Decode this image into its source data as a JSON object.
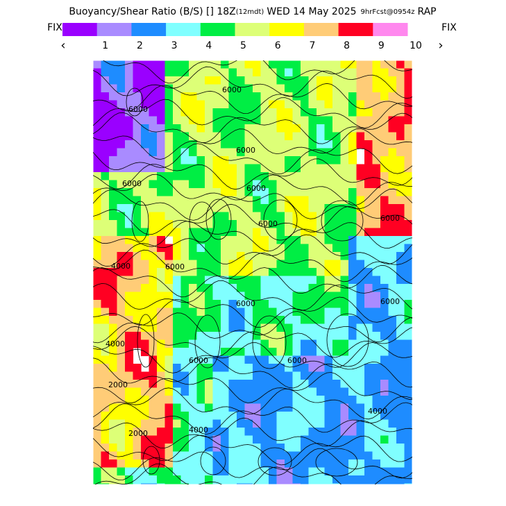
{
  "header": {
    "title": "Buoyancy/Shear Ratio (B/S) [] 18Z",
    "title_time": "(12mdt)",
    "title_date": "WED 14 May 2025",
    "title_run": "9hrFcst@0954z",
    "title_model": "RAP"
  },
  "legend": {
    "fix_left": "FIX",
    "fix_right": "FIX",
    "prev": "‹",
    "next": "›",
    "labels": [
      "1",
      "2",
      "3",
      "4",
      "5",
      "6",
      "7",
      "8",
      "9",
      "10"
    ],
    "colors": [
      "#9a00ff",
      "#a98bff",
      "#1e8cff",
      "#80ffff",
      "#00ee44",
      "#ddff77",
      "#ffff00",
      "#ffcc77",
      "#ff0022",
      "#ff88ee"
    ]
  },
  "map": {
    "contour_labels": [
      "6000",
      "6000",
      "6000",
      "6000",
      "6000",
      "6000",
      "4000",
      "6000",
      "6000",
      "6000",
      "4000",
      "2000",
      "2000",
      "4000",
      "6000",
      "4000",
      "6000",
      "6000"
    ]
  }
}
